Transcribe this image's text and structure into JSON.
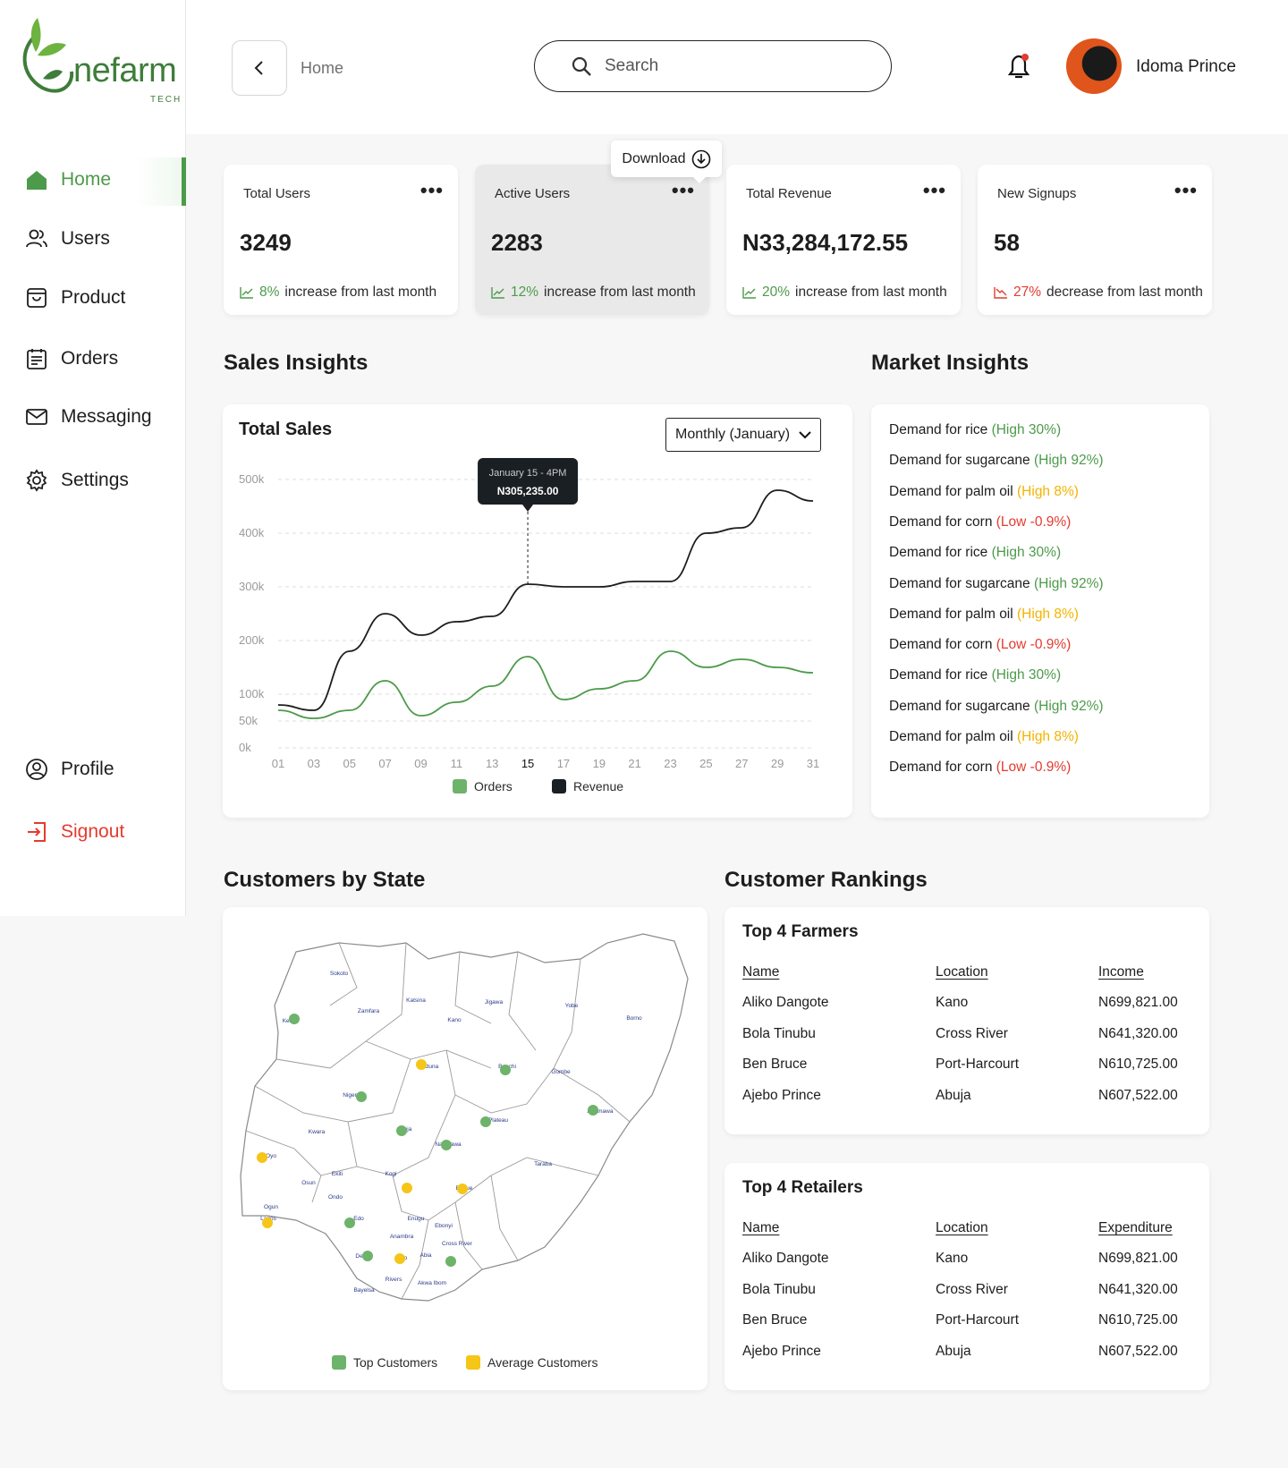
{
  "brand": {
    "name": "nefarm",
    "sub": "TECH"
  },
  "sidebar": {
    "items": [
      {
        "label": "Home"
      },
      {
        "label": "Users"
      },
      {
        "label": "Product"
      },
      {
        "label": "Orders"
      },
      {
        "label": "Messaging"
      },
      {
        "label": "Settings"
      }
    ],
    "profile": "Profile",
    "signout": "Signout"
  },
  "header": {
    "breadcrumb": "Home",
    "search_placeholder": "Search",
    "user_name": "Idoma Prince"
  },
  "download_label": "Download",
  "stats": [
    {
      "label": "Total Users",
      "value": "3249",
      "pct": "8%",
      "text": "increase from last month",
      "trend": "up"
    },
    {
      "label": "Active Users",
      "value": "2283",
      "pct": "12%",
      "text": "increase from last month",
      "trend": "up"
    },
    {
      "label": "Total Revenue",
      "value": "N33,284,172.55",
      "pct": "20%",
      "text": "increase from last month",
      "trend": "up"
    },
    {
      "label": "New Signups",
      "value": "58",
      "pct": "27%",
      "text": "decrease from last month",
      "trend": "down"
    }
  ],
  "sales": {
    "section_title": "Sales Insights",
    "chart_title": "Total Sales",
    "period": "Monthly (January)",
    "tooltip_date": "January 15 - 4PM",
    "tooltip_value": "N305,235.00"
  },
  "chart_data": {
    "type": "line",
    "title": "Total Sales",
    "y_ticks": [
      "500k",
      "400k",
      "300k",
      "200k",
      "100k",
      "50k",
      "0k"
    ],
    "x_ticks": [
      "01",
      "03",
      "05",
      "07",
      "09",
      "11",
      "13",
      "15",
      "17",
      "19",
      "21",
      "23",
      "25",
      "27",
      "29",
      "31"
    ],
    "x": [
      1,
      3,
      5,
      7,
      9,
      11,
      13,
      15,
      17,
      19,
      21,
      23,
      25,
      27,
      29,
      31
    ],
    "series": [
      {
        "name": "Revenue",
        "color": "#1d1d1d",
        "values": [
          80,
          70,
          180,
          250,
          210,
          235,
          245,
          305,
          300,
          300,
          310,
          310,
          400,
          410,
          480,
          460
        ]
      },
      {
        "name": "Orders",
        "color": "#4d9a4a",
        "values": [
          70,
          55,
          70,
          125,
          60,
          85,
          115,
          170,
          90,
          110,
          125,
          180,
          150,
          165,
          150,
          140
        ]
      }
    ],
    "legend": [
      "Orders",
      "Revenue"
    ],
    "grid": true,
    "legend_position": "bottom"
  },
  "market": {
    "section_title": "Market Insights",
    "items": [
      {
        "label": "Demand for rice",
        "value": "(High 30%)",
        "tone": "green"
      },
      {
        "label": "Demand for sugarcane",
        "value": "(High 92%)",
        "tone": "green"
      },
      {
        "label": "Demand for palm oil",
        "value": "(High 8%)",
        "tone": "amber"
      },
      {
        "label": "Demand for corn",
        "value": "(Low -0.9%)",
        "tone": "red"
      },
      {
        "label": "Demand for rice",
        "value": "(High 30%)",
        "tone": "green"
      },
      {
        "label": "Demand for sugarcane",
        "value": "(High 92%)",
        "tone": "green"
      },
      {
        "label": "Demand for palm oil",
        "value": "(High 8%)",
        "tone": "amber"
      },
      {
        "label": "Demand for corn",
        "value": "(Low -0.9%)",
        "tone": "red"
      },
      {
        "label": "Demand for rice",
        "value": "(High 30%)",
        "tone": "green"
      },
      {
        "label": "Demand for sugarcane",
        "value": "(High 92%)",
        "tone": "green"
      },
      {
        "label": "Demand for palm oil",
        "value": "(High 8%)",
        "tone": "amber"
      },
      {
        "label": "Demand for corn",
        "value": "(Low -0.9%)",
        "tone": "red"
      }
    ]
  },
  "customers_by_state": {
    "section_title": "Customers by State",
    "legend_top": "Top Customers",
    "legend_avg": "Average Customers",
    "states": [
      "Sokoto",
      "Katsina",
      "Jigawa",
      "Yobe",
      "Borno",
      "Zamfara",
      "Kano",
      "Kebbi",
      "Kaduna",
      "Bauchi",
      "Gombe",
      "Niger",
      "Adamawa",
      "Abuja",
      "Plateau",
      "Kwara",
      "Nasarawa",
      "Oyo",
      "Ekiti",
      "Kogi",
      "Taraba",
      "Osun",
      "Benue",
      "Ondo",
      "Ogun",
      "Lagos",
      "Edo",
      "Enugu",
      "Ebonyi",
      "Anambra",
      "Delta",
      "Imo",
      "Abia",
      "Cross River",
      "Rivers",
      "Akwa Ibom",
      "Bayelsa"
    ]
  },
  "rankings": {
    "section_title": "Customer Rankings",
    "farmers": {
      "title": "Top 4 Farmers",
      "headers": [
        "Name",
        "Location",
        "Income"
      ],
      "rows": [
        [
          "Aliko Dangote",
          "Kano",
          "N699,821.00"
        ],
        [
          "Bola Tinubu",
          "Cross River",
          "N641,320.00"
        ],
        [
          "Ben Bruce",
          "Port-Harcourt",
          "N610,725.00"
        ],
        [
          "Ajebo Prince",
          "Abuja",
          "N607,522.00"
        ]
      ]
    },
    "retailers": {
      "title": "Top 4 Retailers",
      "headers": [
        "Name",
        "Location",
        "Expenditure"
      ],
      "rows": [
        [
          "Aliko Dangote",
          "Kano",
          "N699,821.00"
        ],
        [
          "Bola Tinubu",
          "Cross River",
          "N641,320.00"
        ],
        [
          "Ben Bruce",
          "Port-Harcourt",
          "N610,725.00"
        ],
        [
          "Ajebo Prince",
          "Abuja",
          "N607,522.00"
        ]
      ]
    }
  }
}
